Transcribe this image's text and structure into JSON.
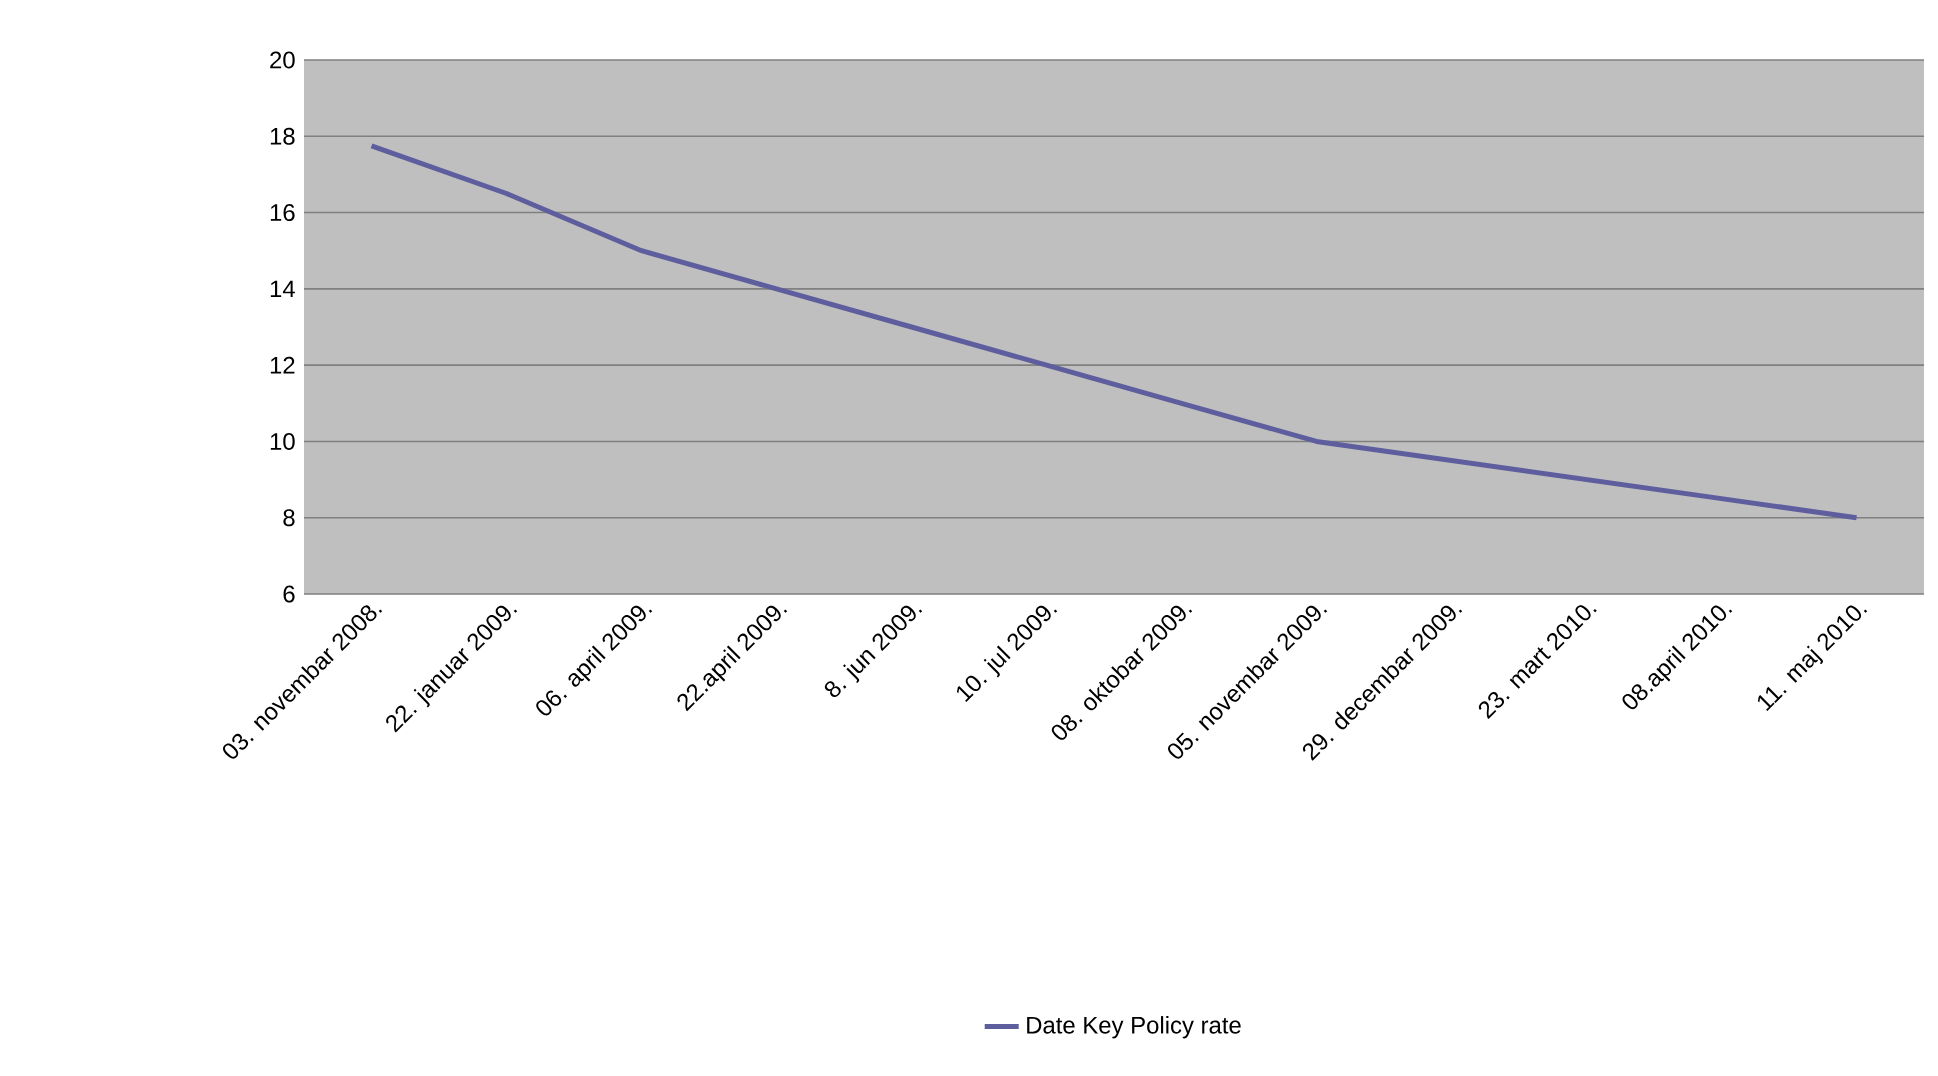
{
  "chart_data": {
    "type": "line",
    "categories": [
      "03. novembar 2008.",
      "22. januar 2009.",
      "06. april 2009.",
      "22.april 2009.",
      "8. jun 2009.",
      "10. jul 2009.",
      "08. oktobar 2009.",
      "05. novembar 2009.",
      "29. decembar 2009.",
      "23. mart 2010.",
      "08.april 2010.",
      "11. maj 2010."
    ],
    "series": [
      {
        "name": "Date Key Policy rate",
        "color": "#5e5e9e",
        "values": [
          17.75,
          16.5,
          15,
          14,
          13,
          12,
          11,
          10,
          9.5,
          9,
          8.5,
          8
        ]
      }
    ],
    "ylim": [
      6,
      20
    ],
    "yticks": [
      6,
      8,
      10,
      12,
      14,
      16,
      18,
      20
    ],
    "grid": "y",
    "legend": "bottom",
    "marker": "none",
    "line_style": "solid"
  }
}
